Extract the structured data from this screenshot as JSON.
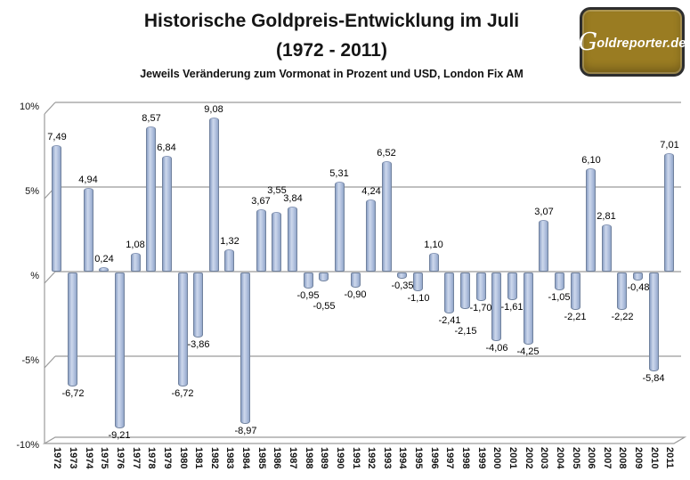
{
  "header": {
    "title_line1": "Historische Goldpreis-Entwicklung im Juli",
    "title_line2": "(1972 - 2011)",
    "subtitle": "Jeweils Veränderung zum Vormonat in Prozent und USD, London Fix AM"
  },
  "logo": {
    "text_initial": "G",
    "text_rest": "oldreporter.de",
    "bg_color": "#9a7c22",
    "text_color": "#ffffff"
  },
  "chart_data": {
    "type": "bar",
    "title": "Historische Goldpreis-Entwicklung im Juli (1972 - 2011)",
    "subtitle": "Jeweils Veränderung zum Vormonat in Prozent und USD, London Fix AM",
    "categories": [
      "1972",
      "1973",
      "1974",
      "1975",
      "1976",
      "1977",
      "1978",
      "1979",
      "1980",
      "1981",
      "1982",
      "1983",
      "1984",
      "1985",
      "1986",
      "1987",
      "1988",
      "1989",
      "1990",
      "1991",
      "1992",
      "1993",
      "1994",
      "1995",
      "1996",
      "1997",
      "1998",
      "1999",
      "2000",
      "2001",
      "2002",
      "2003",
      "2004",
      "2005",
      "2006",
      "2007",
      "2008",
      "2009",
      "2010",
      "2011"
    ],
    "values": [
      7.49,
      -6.72,
      4.94,
      0.24,
      -9.21,
      1.08,
      8.57,
      6.84,
      -6.72,
      -3.86,
      9.08,
      1.32,
      -8.97,
      3.67,
      3.55,
      3.84,
      -0.95,
      -0.55,
      5.31,
      -0.9,
      4.24,
      6.52,
      -0.35,
      -1.1,
      1.1,
      -2.41,
      -2.15,
      -1.7,
      -4.06,
      -1.61,
      -4.25,
      3.07,
      -1.05,
      -2.21,
      6.1,
      2.81,
      -2.22,
      -0.48,
      -5.84,
      7.01
    ],
    "value_labels": [
      "7,49",
      "-6,72",
      "4,94",
      "0,24",
      "-9,21",
      "1,08",
      "8,57",
      "6,84",
      "-6,72",
      "-3,86",
      "9,08",
      "1,32",
      "-8,97",
      "3,67",
      "3,55",
      "3,84",
      "-0,95",
      "-0,55",
      "5,31",
      "-0,90",
      "4,24",
      "6,52",
      "-0,35",
      "-1,10",
      "1,10",
      "-2,41",
      "-2,15",
      "-1,70",
      "-4,06",
      "-1,61",
      "-4,25",
      "3,07",
      "-1,05",
      "-2,21",
      "6,10",
      "2,81",
      "-2,22",
      "-0,48",
      "-5,84",
      "7,01"
    ],
    "y_ticks": [
      "10%",
      "5%",
      "%",
      "-5%",
      "-10%"
    ],
    "ylim": [
      -10,
      10
    ],
    "grid": true,
    "legend": false,
    "bar_fill": "#b4c3e0",
    "bar_border": "#71829e",
    "grid_color": "#9b9b9b"
  }
}
